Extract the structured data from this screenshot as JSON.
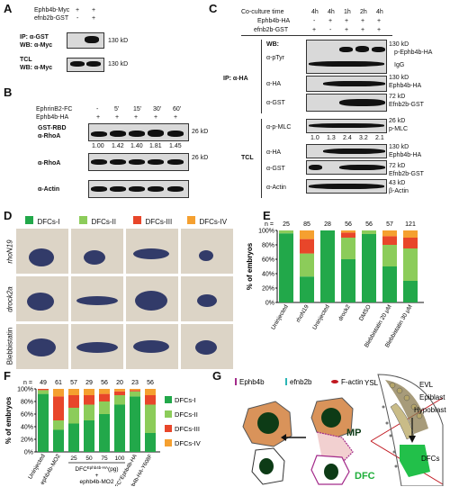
{
  "panelA": {
    "label": "A",
    "rows": [
      "Ephb4b-Myc",
      "efnb2b-GST"
    ],
    "row1_vals": [
      "+",
      "+"
    ],
    "row2_vals": [
      "-",
      "+"
    ],
    "blot1_label1": "IP: α-GST",
    "blot1_label2": "WB: α-Myc",
    "blot2_label1": "TCL",
    "blot2_label2": "WB: α-Myc",
    "marker": "130 kD"
  },
  "panelB": {
    "label": "B",
    "row1": "EphrinB2-FC",
    "row1_vals": [
      "-",
      "5'",
      "15'",
      "30'",
      "60'"
    ],
    "row2": "Ephb4b-HA",
    "row2_vals": [
      "+",
      "+",
      "+",
      "+",
      "+"
    ],
    "blot1_label1": "GST-RBD",
    "blot1_label2": "α-RhoA",
    "quant": [
      "1.00",
      "1.42",
      "1.40",
      "1.81",
      "1.45"
    ],
    "blot2_label": "α-RhoA",
    "blot3_label": "α-Actin",
    "marker": "26 kD"
  },
  "panelC": {
    "label": "C",
    "row0": "Co-culture time",
    "row0_vals": [
      "4h",
      "4h",
      "1h",
      "2h",
      "4h"
    ],
    "row1": "Ephb4b-HA",
    "row1_vals": [
      "-",
      "+",
      "+",
      "+",
      "+"
    ],
    "row2": "efnb2b-GST",
    "row2_vals": [
      "+",
      "-",
      "+",
      "+",
      "+"
    ],
    "wb": "WB:",
    "ip": "IP: α-HA",
    "tcl": "TCL",
    "b1": "α-pTyr",
    "b2": "α-HA",
    "b3": "α-GST",
    "b4": "α-p-MLC",
    "quant": [
      "1.0",
      "1.3",
      "2.4",
      "3.2",
      "2.1"
    ],
    "b5": "α-HA",
    "b6": "α-GST",
    "b7": "α-Actin",
    "m130a": "130 kD",
    "p_ephb4b": "p-Ephb4b-HA",
    "igg": "IgG",
    "m130b": "130 kD",
    "ephb4b_ha": "Ephb4b-HA",
    "m72a": "72 kD",
    "efnb2b_gst": "Efnb2b-GST",
    "m26": "26 kD",
    "pmlc": "p-MLC",
    "m130c": "130 kD",
    "ephb4b_ha2": "Ephb4b-HA",
    "m72b": "72 kD",
    "efnb2b_gst2": "Efnb2b-GST",
    "m43": "43 kD",
    "bactin": "β-Actin"
  },
  "panelD": {
    "label": "D",
    "legend": [
      "DFCs-I",
      "DFCs-II",
      "DFCs-III",
      "DFCs-IV"
    ],
    "rows": [
      "rhoN19",
      "drock2a",
      "Blebbistatin"
    ]
  },
  "colors": {
    "c1": "#22a84a",
    "c2": "#8ccc5a",
    "c3": "#e8462a",
    "c4": "#f5a030"
  },
  "chart_data": [
    {
      "type": "bar",
      "panel": "E",
      "n_label": "n =",
      "n": [
        "25",
        "85",
        "28",
        "56",
        "56",
        "57",
        "121"
      ],
      "categories": [
        "Uninjected",
        "rhoN19",
        "Uninjected",
        "drock2",
        "DMSO",
        "Blebbistatin 20 μM",
        "Blebbistatin 30 μM"
      ],
      "ylabel": "% of embryos",
      "yticks": [
        "0%",
        "20%",
        "40%",
        "60%",
        "80%",
        "100%"
      ],
      "ylim": [
        0,
        100
      ],
      "series": [
        {
          "name": "DFCs-I",
          "values": [
            96,
            36,
            100,
            60,
            95,
            50,
            30
          ]
        },
        {
          "name": "DFCs-II",
          "values": [
            4,
            32,
            0,
            30,
            5,
            30,
            45
          ]
        },
        {
          "name": "DFCs-III",
          "values": [
            0,
            20,
            0,
            7,
            0,
            12,
            15
          ]
        },
        {
          "name": "DFCs-IV",
          "values": [
            0,
            12,
            0,
            3,
            0,
            8,
            10
          ]
        }
      ]
    },
    {
      "type": "bar",
      "panel": "F",
      "n_label": "n =",
      "n": [
        "49",
        "61",
        "57",
        "29",
        "56",
        "20",
        "23",
        "56"
      ],
      "categories": [
        "Uninjected",
        "ephb4b-MO2",
        "25",
        "50",
        "75",
        "100",
        "DFC^Ephb4b-HA",
        "DFC^Ephb4b-HA-Y608F"
      ],
      "group_label": "DFC",
      "group_sup": "Ephb4b-HA",
      "group_unit": "(pg)",
      "group_plus": "+",
      "group_mo": "ephb4b-MO2",
      "ylabel": "% of embryos",
      "yticks": [
        "0%",
        "20%",
        "40%",
        "60%",
        "80%",
        "100%"
      ],
      "ylim": [
        0,
        100
      ],
      "legend": [
        "DFCs-I",
        "DFCs-II",
        "DFCs-III",
        "DFCs-IV"
      ],
      "series": [
        {
          "name": "DFCs-I",
          "values": [
            92,
            35,
            45,
            50,
            60,
            75,
            88,
            30
          ]
        },
        {
          "name": "DFCs-II",
          "values": [
            6,
            15,
            25,
            25,
            20,
            15,
            8,
            45
          ]
        },
        {
          "name": "DFCs-III",
          "values": [
            2,
            38,
            20,
            15,
            12,
            6,
            2,
            15
          ]
        },
        {
          "name": "DFCs-IV",
          "values": [
            0,
            12,
            10,
            10,
            8,
            4,
            2,
            10
          ]
        }
      ]
    }
  ],
  "panelG": {
    "label": "G",
    "legend": [
      "Ephb4b",
      "efnb2b",
      "F-actin"
    ],
    "mp": "MP",
    "dfc": "DFC",
    "ysl": "YSL",
    "evl": "EVL",
    "epiblast": "Epiblast",
    "hypoblast": "Hypoblast",
    "dfcs": "DFCs"
  }
}
